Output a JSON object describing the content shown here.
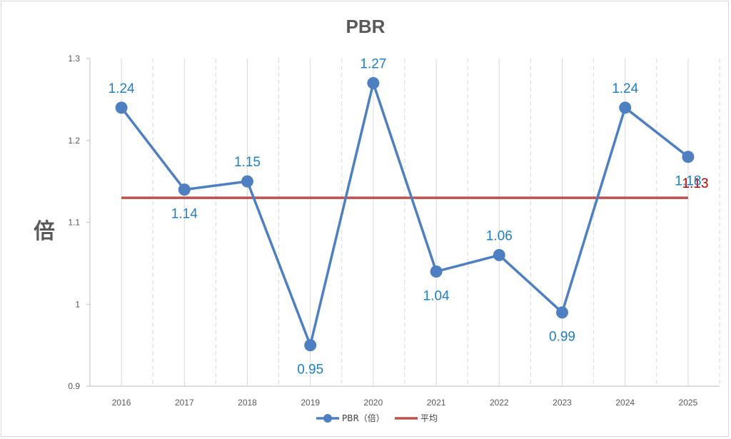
{
  "chart_data": {
    "type": "line",
    "title": "PBR",
    "ylabel": "倍",
    "xlabel": "",
    "ylim": [
      0.9,
      1.3
    ],
    "yticks": [
      "0.9",
      "1",
      "1.1",
      "1.2",
      "1.3"
    ],
    "categories": [
      "2016",
      "2017",
      "2018",
      "2019",
      "2020",
      "2021",
      "2022",
      "2023",
      "2024",
      "2025"
    ],
    "series": [
      {
        "name": "PBR（倍）",
        "values": [
          1.24,
          1.14,
          1.15,
          0.95,
          1.27,
          1.04,
          1.06,
          0.99,
          1.24,
          1.18
        ],
        "labels": [
          "1.24",
          "1.14",
          "1.15",
          "0.95",
          "1.27",
          "1.04",
          "1.06",
          "0.99",
          "1.24",
          "1.18"
        ],
        "color": "#4e7fc1"
      },
      {
        "name": "平均",
        "value": 1.13,
        "label": "1.13",
        "color": "#c0504d"
      }
    ],
    "grid": "vertical dashed",
    "legend": "bottom"
  }
}
